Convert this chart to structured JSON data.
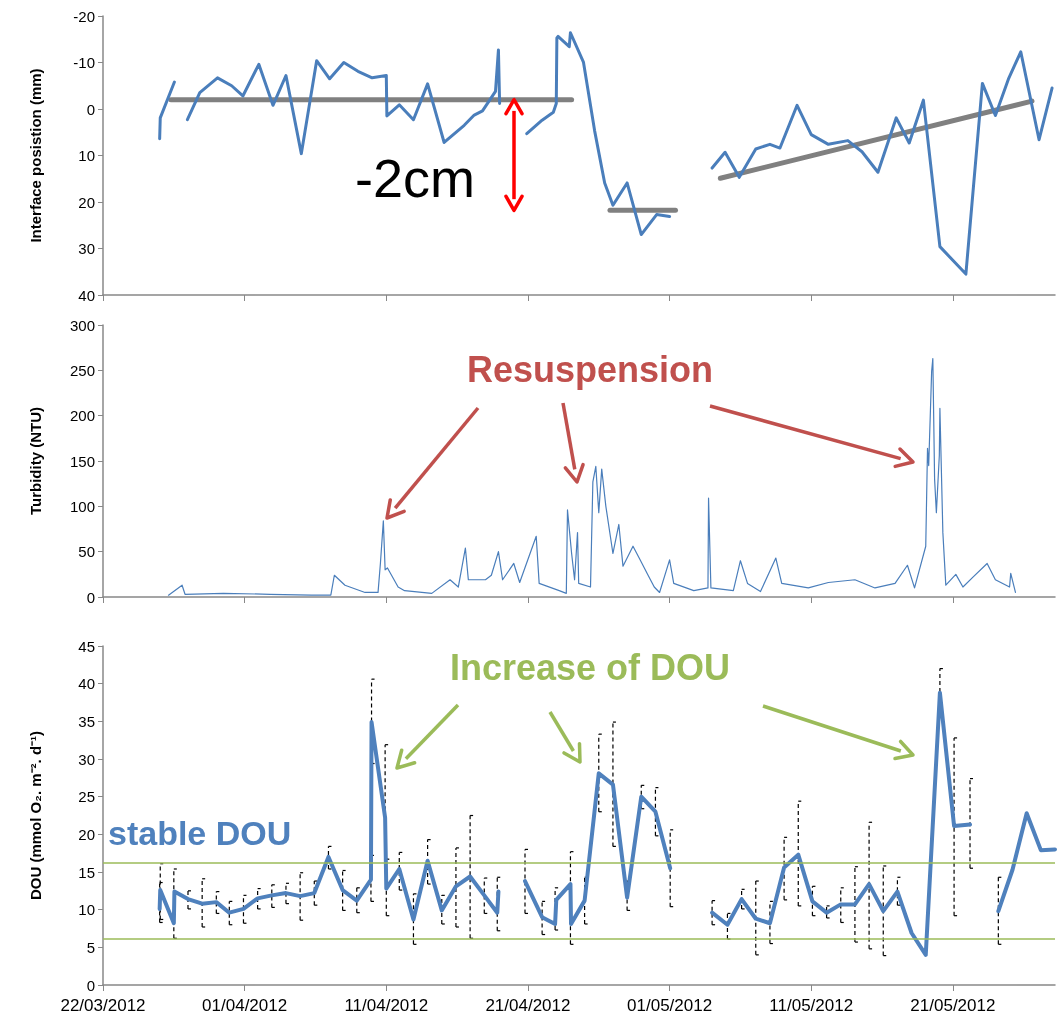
{
  "chart_data": [
    {
      "type": "line",
      "ylabel": "Interface posistion (mm)",
      "annotations": [
        "-2cm"
      ],
      "xlim": [
        "2012-03-22",
        "2012-05-28T05:00"
      ],
      "xticks": [
        {
          "value": "2012-03-22",
          "label": null
        },
        {
          "value": "2012-04-01",
          "label": null
        },
        {
          "value": "2012-04-11",
          "label": null
        },
        {
          "value": "2012-04-21",
          "label": null
        },
        {
          "value": "2012-05-01",
          "label": null
        },
        {
          "value": "2012-05-11",
          "label": null
        },
        {
          "value": "2012-05-21",
          "label": null
        }
      ],
      "ylim": [
        40,
        -20
      ],
      "yticks": [
        -20,
        -10,
        0,
        10,
        20,
        30,
        40
      ],
      "tick_labels": "y",
      "marker": "none",
      "series": [
        {
          "color": "#4a7ebb",
          "x": [
            "2012-03-26T00:00",
            "2012-03-26T01:00",
            "2012-03-27T01:00",
            "2012-03-27T12:00",
            "2012-03-27T23:00",
            "2012-03-28T20:00",
            "2012-03-30T02:00",
            "2012-03-31T02:00",
            "2012-03-31T21:00",
            "2012-04-02T00:00",
            "2012-04-03T00:00",
            "2012-04-03T22:00",
            "2012-04-05T00:00",
            "2012-04-06T02:00",
            "2012-04-07T00:00",
            "2012-04-08T00:00",
            "2012-04-09T00:00",
            "2012-04-10T00:00",
            "2012-04-11T00:00",
            "2012-04-11T01:00",
            "2012-04-11T22:00",
            "2012-04-12T22:00",
            "2012-04-13T22:00",
            "2012-04-15T02:00",
            "2012-04-16T12:00",
            "2012-04-17T05:00",
            "2012-04-17T19:00",
            "2012-04-18T17:00",
            "2012-04-18T22:00",
            "2012-04-19T00:00",
            "2012-04-19T12:00",
            "2012-04-20T22:00",
            "2012-04-22T00:00",
            "2012-04-22T19:00",
            "2012-04-23T00:00",
            "2012-04-23T01:00",
            "2012-04-23T03:00",
            "2012-04-23T22:00",
            "2012-04-24T00:00",
            "2012-04-24T22:00",
            "2012-04-25T17:00",
            "2012-04-26T10:00",
            "2012-04-27T00:00",
            "2012-04-28T00:00",
            "2012-04-29T00:00",
            "2012-04-30T02:00",
            "2012-05-01T00:00",
            "2012-05-02T12:00",
            "2012-05-04T00:00",
            "2012-05-04T22:00",
            "2012-05-05T22:00",
            "2012-05-07T02:00",
            "2012-05-08T02:00",
            "2012-05-08T19:00",
            "2012-05-10T00:00",
            "2012-05-11T00:00",
            "2012-05-12T05:00",
            "2012-05-13T14:00",
            "2012-05-14T14:00",
            "2012-05-15T17:00",
            "2012-05-17T00:00",
            "2012-05-17T22:00",
            "2012-05-18T22:00",
            "2012-05-20T02:00",
            "2012-05-21T22:00",
            "2012-05-23T02:00",
            "2012-05-24T00:00",
            "2012-05-24T22:00",
            "2012-05-25T19:00",
            "2012-05-27T02:00",
            "2012-05-28T00:00"
          ],
          "values": [
            6.4,
            1.9,
            -5.8,
            null,
            2.3,
            -3.5,
            -6.7,
            -5.0,
            -2.8,
            -9.6,
            -0.8,
            -7.2,
            9.6,
            -10.4,
            -6.5,
            -10.0,
            -8.1,
            -6.7,
            -7.2,
            1.5,
            -0.9,
            2.3,
            -5.4,
            7.2,
            3.5,
            1.3,
            0.4,
            -3.8,
            -12.7,
            -1.2,
            null,
            5.3,
            2.4,
            0.7,
            -1.2,
            -15.3,
            -15.6,
            -13.4,
            -16.4,
            -10.1,
            4.7,
            15.9,
            20.7,
            15.9,
            27.0,
            22.7,
            23.1,
            null,
            12.7,
            9.3,
            14.7,
            8.6,
            7.6,
            8.4,
            -0.8,
            5.5,
            7.6,
            6.8,
            9.2,
            13.6,
            1.9,
            7.3,
            -1.9,
            29.6,
            35.5,
            -5.5,
            1.4,
            -6.4,
            -12.3,
            6.6,
            -4.5
          ]
        },
        {
          "color": "#808080",
          "x": [
            "2012-03-26T19:00",
            "2012-04-24T02:00"
          ],
          "values": [
            -2,
            -2
          ]
        },
        {
          "color": "#808080",
          "x": [
            "2012-04-26T19:00",
            "2012-05-01T10:00"
          ],
          "values": [
            21.8,
            21.8
          ]
        },
        {
          "color": "#808080",
          "x": [
            "2012-05-04T14:00",
            "2012-05-26T14:00"
          ],
          "values": [
            14.9,
            -1.7
          ]
        }
      ]
    },
    {
      "type": "line",
      "ylabel": "Turbidity (NTU)",
      "annotations": [
        "Resuspension"
      ],
      "xlim": [
        "2012-03-22",
        "2012-05-28T05:00"
      ],
      "xticks": [
        {
          "value": "2012-03-22",
          "label": null
        },
        {
          "value": "2012-04-01",
          "label": null
        },
        {
          "value": "2012-04-11",
          "label": null
        },
        {
          "value": "2012-04-21",
          "label": null
        },
        {
          "value": "2012-05-01",
          "label": null
        },
        {
          "value": "2012-05-11",
          "label": null
        },
        {
          "value": "2012-05-21",
          "label": null
        }
      ],
      "ylim": [
        0,
        300
      ],
      "yticks": [
        0,
        50,
        100,
        150,
        200,
        250,
        300
      ],
      "tick_labels": "y",
      "marker": "none",
      "series": [
        {
          "color": "#4a7ebb",
          "x": [
            "2012-03-26T15:00",
            "2012-03-27T14:00",
            "2012-03-27T19:00",
            "2012-03-30T12:00",
            "2012-04-02T19:00",
            "2012-04-05T17:00",
            "2012-04-07T02:00",
            "2012-04-07T08:00",
            "2012-04-08T02:00",
            "2012-04-09T12:00",
            "2012-04-10T10:00",
            "2012-04-10T14:00",
            "2012-04-10T19:00",
            "2012-04-10T22:00",
            "2012-04-11T02:00",
            "2012-04-11T20:00",
            "2012-04-12T07:00",
            "2012-04-14T05:00",
            "2012-04-15T12:00",
            "2012-04-16T02:00",
            "2012-04-16T14:00",
            "2012-04-16T19:00",
            "2012-04-18T00:00",
            "2012-04-18T10:00",
            "2012-04-18T22:00",
            "2012-04-19T05:00",
            "2012-04-20T00:00",
            "2012-04-20T10:00",
            "2012-04-21T14:00",
            "2012-04-21T19:00",
            "2012-04-23T05:00",
            "2012-04-23T17:00",
            "2012-04-23T19:00",
            "2012-04-24T02:00",
            "2012-04-24T07:00",
            "2012-04-24T12:00",
            "2012-04-24T14:00",
            "2012-04-25T10:00",
            "2012-04-25T14:00",
            "2012-04-25T19:00",
            "2012-04-26T00:00",
            "2012-04-26T05:00",
            "2012-04-26T12:00",
            "2012-04-27T00:00",
            "2012-04-27T10:00",
            "2012-04-27T17:00",
            "2012-04-28T10:00",
            "2012-04-28T22:00",
            "2012-04-29T10:00",
            "2012-04-29T22:00",
            "2012-04-30T07:00",
            "2012-05-01T00:00",
            "2012-05-01T07:00",
            "2012-05-02T17:00",
            "2012-05-03T17:00",
            "2012-05-03T18:00",
            "2012-05-03T22:00",
            "2012-05-05T12:00",
            "2012-05-06T00:00",
            "2012-05-06T12:00",
            "2012-05-07T10:00",
            "2012-05-08T12:00",
            "2012-05-08T22:00",
            "2012-05-10T19:00",
            "2012-05-12T05:00",
            "2012-05-14T02:00",
            "2012-05-15T12:00",
            "2012-05-16T22:00",
            "2012-05-17T19:00",
            "2012-05-18T07:00",
            "2012-05-19T02:00",
            "2012-05-19T05:00",
            "2012-05-19T07:00",
            "2012-05-19T12:00",
            "2012-05-19T14:00",
            "2012-05-19T17:00",
            "2012-05-19T20:00",
            "2012-05-20T01:00",
            "2012-05-20T02:00",
            "2012-05-20T07:00",
            "2012-05-20T12:00",
            "2012-05-21T05:00",
            "2012-05-21T17:00",
            "2012-05-22T10:00",
            "2012-05-23T10:00",
            "2012-05-24T00:00",
            "2012-05-25T00:00",
            "2012-05-25T02:00",
            "2012-05-25T10:00"
          ],
          "values": [
            2,
            13,
            3,
            4,
            3,
            2,
            2,
            24,
            13,
            5,
            5,
            37,
            84,
            30,
            32,
            11,
            7,
            4,
            19,
            11,
            54,
            19,
            19,
            24,
            50,
            19,
            37,
            16,
            67,
            15,
            7,
            4,
            96,
            48,
            19,
            71,
            15,
            11,
            127,
            144,
            93,
            141,
            100,
            48,
            80,
            34,
            56,
            41,
            26,
            11,
            5,
            41,
            15,
            7,
            10,
            109,
            10,
            7,
            40,
            15,
            6,
            43,
            15,
            10,
            16,
            19,
            10,
            15,
            35,
            10,
            56,
            164,
            145,
            249,
            263,
            130,
            93,
            156,
            208,
            71,
            13,
            25,
            11,
            22,
            37,
            19,
            11,
            26,
            5
          ]
        }
      ]
    },
    {
      "type": "line",
      "ylabel": "DOU (mmol O₂. m⁻². d⁻¹)",
      "annotations": [
        "Increase of DOU",
        "stable DOU"
      ],
      "xlim": [
        "2012-03-22",
        "2012-05-28T05:00"
      ],
      "xticks": [
        {
          "value": "2012-03-22",
          "label": "22/03/2012"
        },
        {
          "value": "2012-04-01",
          "label": "01/04/2012"
        },
        {
          "value": "2012-04-11",
          "label": "11/04/2012"
        },
        {
          "value": "2012-04-21",
          "label": "21/04/2012"
        },
        {
          "value": "2012-05-01",
          "label": "01/05/2012"
        },
        {
          "value": "2012-05-11",
          "label": "11/05/2012"
        },
        {
          "value": "2012-05-21",
          "label": "21/05/2012"
        }
      ],
      "ylim": [
        0,
        45
      ],
      "yticks": [
        0,
        5,
        10,
        15,
        20,
        25,
        30,
        35,
        40,
        45
      ],
      "marker": "none",
      "ref_lines": [
        {
          "axis": "y",
          "value": 16.2,
          "color": "#9bbb59"
        },
        {
          "axis": "y",
          "value": 6.1,
          "color": "#9bbb59"
        }
      ],
      "series": [
        {
          "color": "#4f81bd",
          "x": [
            "2012-03-26T00:00",
            "2012-03-26T01:00",
            "2012-03-27T00:00",
            "2012-03-27T01:00",
            "2012-03-28T00:00",
            "2012-03-29T00:00",
            "2012-03-30T00:00",
            "2012-03-30T22:00",
            "2012-03-31T22:00",
            "2012-04-01T22:00",
            "2012-04-02T22:00",
            "2012-04-03T22:00",
            "2012-04-04T22:00",
            "2012-04-05T22:00",
            "2012-04-06T22:00",
            "2012-04-07T22:00",
            "2012-04-08T22:00",
            "2012-04-09T22:00",
            "2012-04-09T23:00",
            "2012-04-10T22:00",
            "2012-04-11T00:00",
            "2012-04-11T22:00",
            "2012-04-12T22:00",
            "2012-04-13T22:00",
            "2012-04-14T22:00",
            "2012-04-15T22:00",
            "2012-04-16T22:00",
            "2012-04-17T22:00",
            "2012-04-18T20:00",
            "2012-04-18T22:00",
            "2012-04-19T12:00",
            "2012-04-20T19:00",
            "2012-04-22T00:00",
            "2012-04-22T22:00",
            "2012-04-23T00:00",
            "2012-04-24T00:00",
            "2012-04-24T01:00",
            "2012-04-25T00:00",
            "2012-04-26T00:00",
            "2012-04-27T00:00",
            "2012-04-28T00:00",
            "2012-04-29T00:00",
            "2012-04-30T00:00",
            "2012-05-01T01:00",
            "2012-05-02T12:00",
            "2012-05-04T00:00",
            "2012-05-05T02:00",
            "2012-05-06T02:00",
            "2012-05-07T02:00",
            "2012-05-08T02:00",
            "2012-05-09T02:00",
            "2012-05-10T02:00",
            "2012-05-11T02:00",
            "2012-05-12T02:00",
            "2012-05-13T02:00",
            "2012-05-14T02:00",
            "2012-05-15T02:00",
            "2012-05-16T02:00",
            "2012-05-17T02:00",
            "2012-05-18T02:00",
            "2012-05-19T02:00",
            "2012-05-20T02:00",
            "2012-05-21T02:00",
            "2012-05-22T05:00",
            "2012-05-23T00:00",
            "2012-05-24T05:00",
            "2012-05-25T05:00",
            "2012-05-26T05:00",
            "2012-05-27T05:00",
            "2012-05-28T05:00"
          ],
          "values": [
            10.1,
            12.6,
            8.2,
            12.4,
            11.4,
            10.8,
            11.0,
            9.6,
            10.1,
            11.5,
            11.9,
            12.2,
            11.8,
            12.2,
            17.0,
            12.6,
            11.2,
            14.0,
            34.9,
            22.2,
            12.8,
            15.4,
            8.7,
            16.5,
            9.9,
            13.1,
            14.4,
            11.9,
            9.6,
            12.4,
            null,
            13.8,
            9.0,
            8.1,
            11.3,
            13.4,
            8.1,
            11.2,
            28.1,
            26.6,
            11.6,
            25.0,
            23.0,
            15.5,
            null,
            9.6,
            8.0,
            11.4,
            8.8,
            8.2,
            15.6,
            17.3,
            11.1,
            9.6,
            10.7,
            10.7,
            13.4,
            9.8,
            12.4,
            6.9,
            4.0,
            38.8,
            21.1,
            21.3,
            null,
            9.8,
            15.3,
            22.8,
            17.9,
            18.0
          ],
          "errors": [
            [
              8.3,
              13.6
            ],
            [
              8.7,
              16.1
            ],
            [
              6.2,
              15.4
            ],
            null,
            [
              10.1,
              12.5
            ],
            [
              7.7,
              14.1
            ],
            [
              9.5,
              12.4
            ],
            [
              8.0,
              11.1
            ],
            [
              8.2,
              11.9
            ],
            [
              10.1,
              12.8
            ],
            [
              10.3,
              13.3
            ],
            [
              10.8,
              13.5
            ],
            [
              8.6,
              14.9
            ],
            [
              10.6,
              13.8
            ],
            [
              15.4,
              18.4
            ],
            [
              9.9,
              15.2
            ],
            [
              9.6,
              12.9
            ],
            [
              11.1,
              17.2
            ],
            [
              29.4,
              40.6
            ],
            [
              16.7,
              31.9
            ],
            [
              9.2,
              16.7
            ],
            [
              12.6,
              17.6
            ],
            [
              5.4,
              12.1
            ],
            [
              13.4,
              19.3
            ],
            [
              8.1,
              11.9
            ],
            [
              7.7,
              18.2
            ],
            [
              6.2,
              22.5
            ],
            [
              9.5,
              14.2
            ],
            [
              7.2,
              14.3
            ],
            null,
            null,
            [
              9.5,
              18.0
            ],
            [
              6.7,
              11.1
            ],
            [
              7.3,
              12.9
            ],
            null,
            [
              5.4,
              17.7
            ],
            null,
            [
              8.1,
              14.3
            ],
            [
              23.0,
              33.3
            ],
            [
              18.4,
              34.9
            ],
            [
              9.9,
              13.8
            ],
            [
              23.4,
              26.5
            ],
            [
              19.8,
              26.2
            ],
            [
              10.4,
              20.6
            ],
            null,
            [
              8.0,
              11.2
            ],
            [
              6.1,
              9.5
            ],
            [
              10.1,
              12.7
            ],
            [
              4.0,
              13.8
            ],
            [
              5.5,
              11.1
            ],
            [
              11.3,
              19.6
            ],
            [
              10.5,
              24.4
            ],
            [
              9.2,
              13.1
            ],
            [
              8.9,
              10.5
            ],
            [
              8.3,
              12.9
            ],
            [
              5.7,
              15.7
            ],
            [
              4.8,
              21.6
            ],
            [
              3.9,
              15.8
            ],
            [
              10.6,
              14.3
            ],
            null,
            null,
            [
              36.1,
              42.0
            ],
            [
              9.2,
              32.8
            ],
            [
              15.5,
              27.4
            ],
            null,
            [
              5.4,
              14.3
            ],
            null,
            null,
            null,
            null
          ]
        }
      ]
    }
  ]
}
